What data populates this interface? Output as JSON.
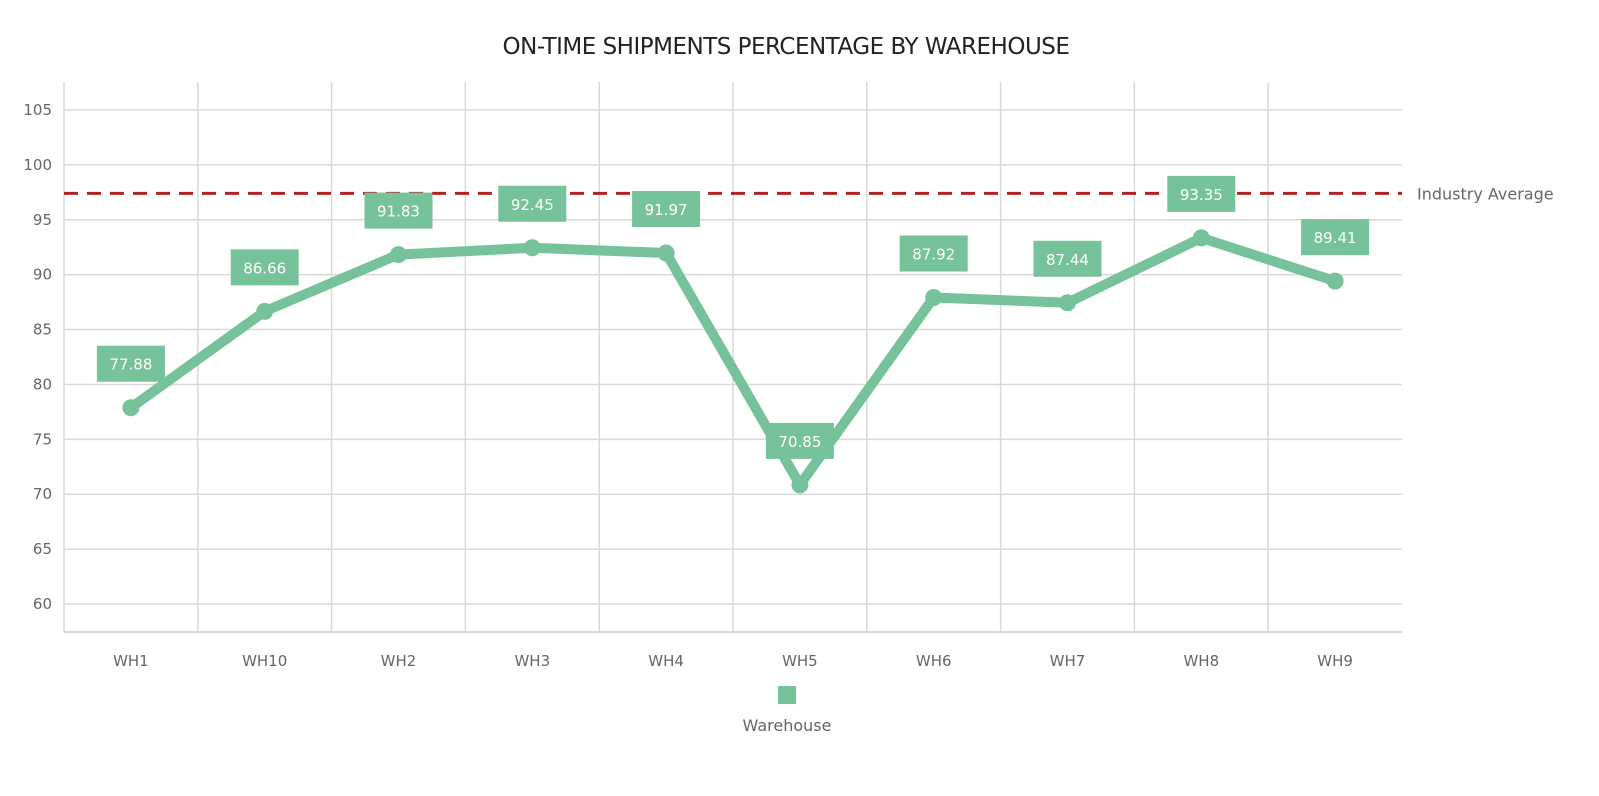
{
  "chart_data": {
    "type": "line",
    "title": "ON-TIME SHIPMENTS PERCENTAGE BY WAREHOUSE",
    "xlabel": "",
    "ylabel": "",
    "categories": [
      "WH1",
      "WH10",
      "WH2",
      "WH3",
      "WH4",
      "WH5",
      "WH6",
      "WH7",
      "WH8",
      "WH9"
    ],
    "series": [
      {
        "name": "Warehouse",
        "values": [
          77.88,
          86.66,
          91.83,
          92.45,
          91.97,
          70.85,
          87.92,
          87.44,
          93.35,
          89.41
        ],
        "color": "#76c29a"
      }
    ],
    "data_labels": [
      "77.88",
      "86.66",
      "91.83",
      "92.45",
      "91.97",
      "70.85",
      "87.92",
      "87.44",
      "93.35",
      "89.41"
    ],
    "ylim": [
      57.5,
      107.5
    ],
    "yticks": [
      60,
      65,
      70,
      75,
      80,
      85,
      90,
      95,
      100,
      105
    ],
    "ytick_labels": [
      "60",
      "65",
      "70",
      "75",
      "80",
      "85",
      "90",
      "95",
      "100",
      "105"
    ],
    "reference_line": {
      "label": "Industry Average",
      "value": 97.4,
      "color": "#b22222",
      "style": "dashed"
    },
    "grid": true,
    "legend": {
      "position": "bottom",
      "entries": [
        "Warehouse"
      ]
    }
  }
}
